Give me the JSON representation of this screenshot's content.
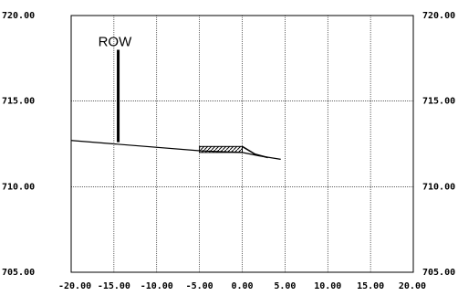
{
  "chart_data": {
    "type": "line",
    "x_ticks": [
      "-20.00",
      "-15.00",
      "-10.00",
      "-5.00",
      "0.00",
      "5.00",
      "10.00",
      "15.00",
      "20.00"
    ],
    "y_ticks_left": [
      "720.00",
      "715.00",
      "710.00",
      "705.00"
    ],
    "y_ticks_right": [
      "720.00",
      "715.00",
      "710.00",
      "705.00"
    ],
    "xlim": [
      -20,
      20
    ],
    "ylim": [
      705,
      720
    ],
    "grid": true,
    "annotation": "ROW",
    "row_marker": {
      "x": -14.5,
      "y_bottom": 712.6,
      "y_top": 718.0
    },
    "ground_profile": [
      {
        "x": -20.0,
        "y": 712.7
      },
      {
        "x": -5.0,
        "y": 712.1
      },
      {
        "x": 0.0,
        "y": 712.0
      },
      {
        "x": 2.0,
        "y": 711.8
      },
      {
        "x": 4.5,
        "y": 711.6
      }
    ],
    "hatched_block": {
      "x_start": -5.0,
      "x_end": 0.0,
      "y_top": 712.35,
      "y_bottom": 712.0
    },
    "sloped_segment": [
      {
        "x": 0.0,
        "y": 712.35
      },
      {
        "x": 1.5,
        "y": 711.9
      },
      {
        "x": 3.0,
        "y": 711.7
      }
    ]
  }
}
